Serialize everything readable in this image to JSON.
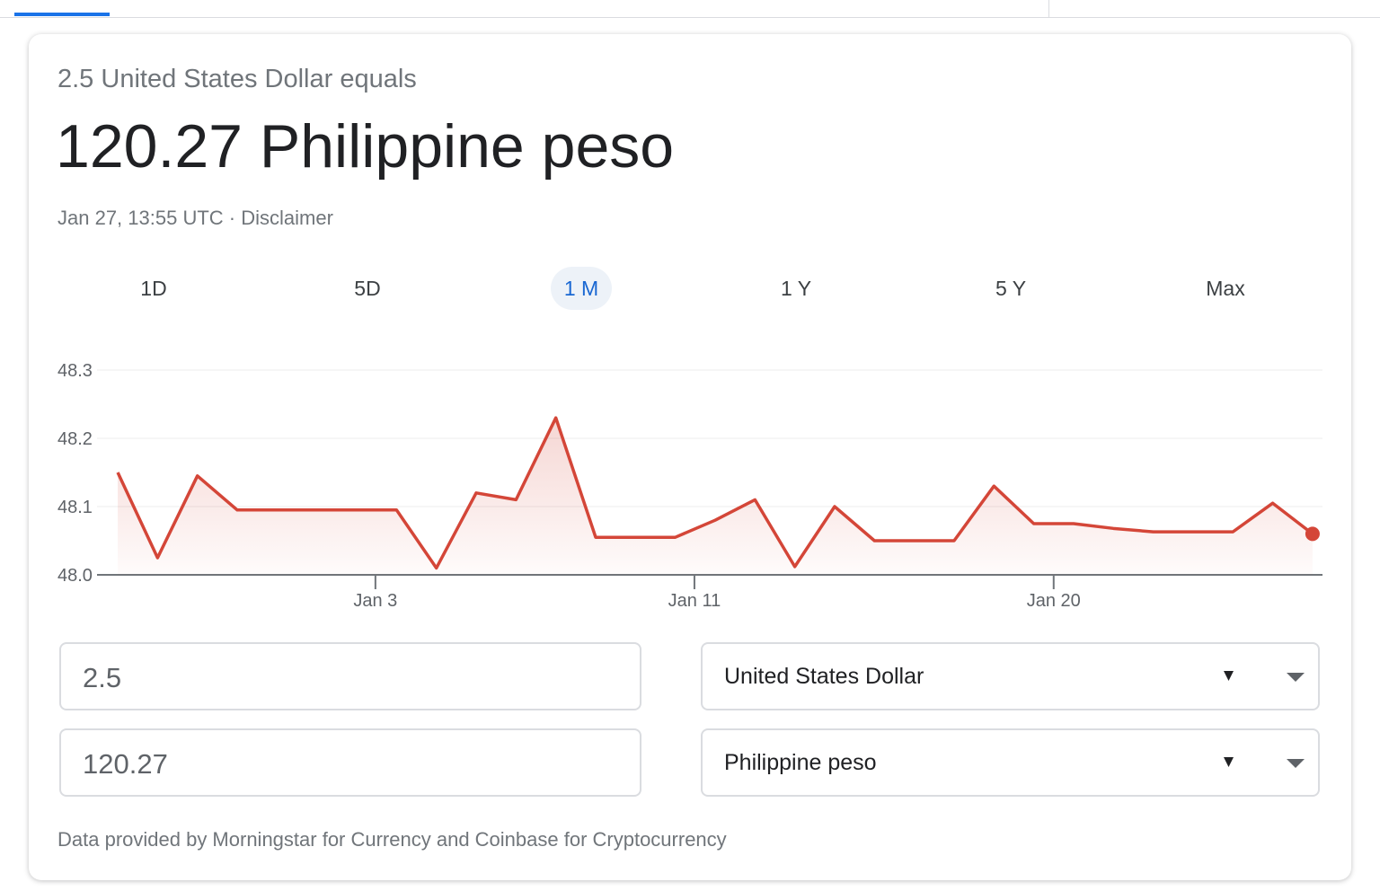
{
  "converter": {
    "intro": "2.5 United States Dollar equals",
    "result": "120.27 Philippine peso",
    "timestamp": "Jan 27, 13:55 UTC",
    "separator": "·",
    "disclaimer": "Disclaimer",
    "tabs": [
      "1D",
      "5D",
      "1 M",
      "1 Y",
      "5 Y",
      "Max"
    ],
    "selected_tab": 2,
    "amount_from": "2.5",
    "amount_to": "120.27",
    "currency_from": "United States Dollar",
    "currency_to": "Philippine peso",
    "footer": "Data provided by Morningstar for Currency and Coinbase for Cryptocurrency"
  },
  "chart_data": {
    "type": "line",
    "x": [
      0,
      1,
      2,
      3,
      4,
      5,
      6,
      7,
      8,
      9,
      10,
      11,
      12,
      13,
      14,
      15,
      16,
      17,
      18,
      19,
      20,
      21,
      22,
      23,
      24,
      25,
      26,
      27,
      28,
      29,
      30
    ],
    "series": [
      {
        "color": "#d44638",
        "values": [
          48.15,
          48.025,
          48.145,
          48.095,
          48.095,
          48.095,
          48.095,
          48.095,
          48.01,
          48.12,
          48.11,
          48.23,
          48.055,
          48.055,
          48.055,
          48.08,
          48.11,
          48.012,
          48.1,
          48.05,
          48.05,
          48.05,
          48.13,
          48.075,
          48.075,
          48.068,
          48.063,
          48.063,
          48.063,
          48.105,
          48.06
        ]
      }
    ],
    "xlim": [
      -0.52,
      30.25
    ],
    "xticks": [
      {
        "value": 6.47,
        "label": "Jan 3"
      },
      {
        "value": 14.48,
        "label": "Jan 11"
      },
      {
        "value": 23.5,
        "label": "Jan 20"
      }
    ],
    "ylim": [
      48,
      48.3
    ],
    "yticks": [
      {
        "value": 48,
        "label": "48.0"
      },
      48.1,
      48.2,
      48.3
    ],
    "grid": true
  }
}
